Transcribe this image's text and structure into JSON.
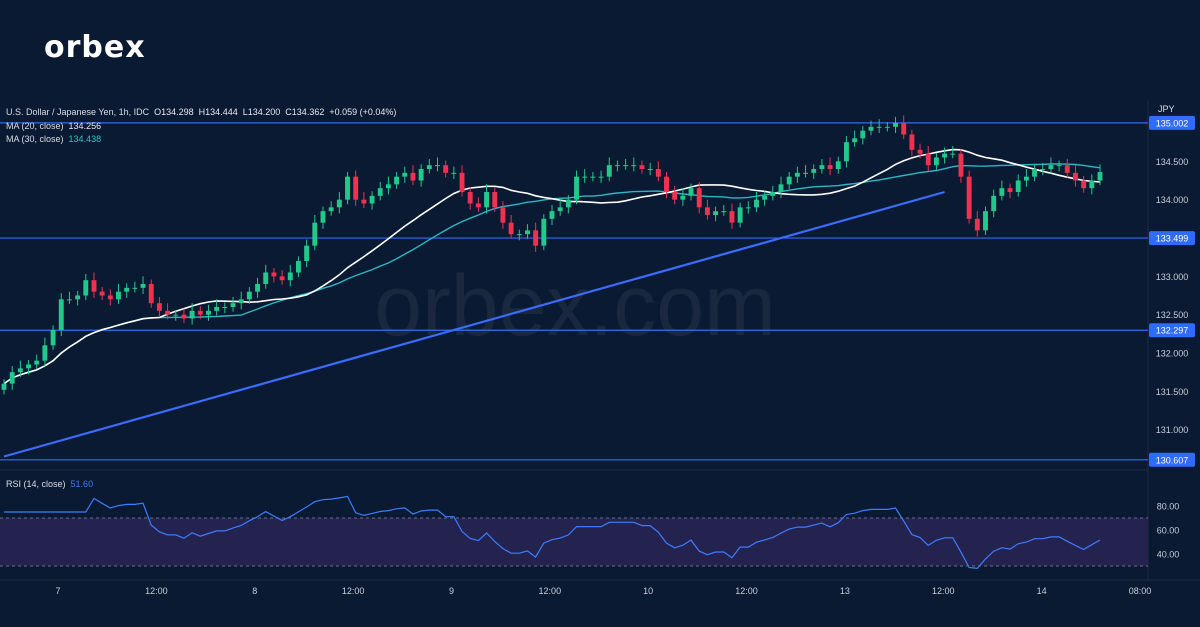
{
  "brand": {
    "logo_text": "orbex",
    "watermark": "orbex.com"
  },
  "header": {
    "instrument": "U.S. Dollar / Japanese Yen, 1h, IDC",
    "ohlc": {
      "open": "O134.298",
      "high": "H134.444",
      "low": "L134.200",
      "close": "C134.362",
      "change": "+0.059 (+0.04%)"
    },
    "ma20_label": "MA (20, close)",
    "ma20_value": "134.256",
    "ma30_label": "MA (30, close)",
    "ma30_value": "134.438",
    "currency": "JPY"
  },
  "rsi_header": {
    "label": "RSI (14, close)",
    "value": "51.60"
  },
  "colors": {
    "background": "#0b1a33",
    "bull": "#22c98a",
    "bear": "#f0314f",
    "ma20": "#ffffff",
    "ma30": "#2ab7c4",
    "levels": "#2f6bff",
    "rsi": "#3b7dff",
    "rsi_band": "#24234f"
  },
  "chart_data": {
    "type": "candlestick",
    "title": "U.S. Dollar / Japanese Yen, 1h",
    "ylim": [
      130.5,
      135.3
    ],
    "y_ticks": [
      "134.500",
      "134.000",
      "133.000",
      "132.500",
      "132.000",
      "131.500",
      "131.000"
    ],
    "x_ticks": [
      "7",
      "12:00",
      "8",
      "12:00",
      "9",
      "12:00",
      "10",
      "12:00",
      "13",
      "12:00",
      "14",
      "08:00"
    ],
    "levels": [
      {
        "value": 135.002,
        "label": "135.002"
      },
      {
        "value": 133.499,
        "label": "133.499"
      },
      {
        "value": 132.297,
        "label": "132.297"
      },
      {
        "value": 130.607,
        "label": "130.607"
      }
    ],
    "trendline": {
      "from": {
        "bar": 0,
        "value": 130.65
      },
      "to": {
        "bar": 115,
        "value": 134.1
      }
    },
    "closes": [
      131.6,
      131.75,
      131.8,
      131.85,
      131.9,
      132.1,
      132.3,
      132.7,
      132.7,
      132.75,
      132.95,
      132.8,
      132.75,
      132.7,
      132.8,
      132.85,
      132.85,
      132.9,
      132.65,
      132.55,
      132.5,
      132.5,
      132.45,
      132.55,
      132.5,
      132.55,
      132.6,
      132.6,
      132.65,
      132.7,
      132.8,
      132.9,
      133.05,
      133.0,
      132.95,
      133.05,
      133.2,
      133.4,
      133.7,
      133.85,
      133.9,
      134.0,
      134.3,
      134.0,
      133.95,
      134.05,
      134.15,
      134.2,
      134.3,
      134.35,
      134.25,
      134.4,
      134.45,
      134.45,
      134.35,
      134.35,
      134.1,
      133.95,
      133.9,
      134.1,
      133.9,
      133.7,
      133.55,
      133.55,
      133.6,
      133.4,
      133.75,
      133.85,
      133.9,
      134.0,
      134.3,
      134.3,
      134.3,
      134.3,
      134.45,
      134.45,
      134.45,
      134.45,
      134.4,
      134.4,
      134.3,
      134.1,
      134.0,
      134.05,
      134.15,
      133.9,
      133.8,
      133.85,
      133.85,
      133.7,
      133.9,
      133.9,
      134.0,
      134.05,
      134.1,
      134.2,
      134.3,
      134.35,
      134.35,
      134.4,
      134.45,
      134.4,
      134.5,
      134.75,
      134.8,
      134.9,
      134.95,
      134.95,
      134.95,
      135.0,
      134.85,
      134.65,
      134.6,
      134.45,
      134.55,
      134.6,
      134.6,
      134.3,
      133.75,
      133.6,
      133.85,
      134.05,
      134.15,
      134.1,
      134.25,
      134.3,
      134.4,
      134.4,
      134.45,
      134.45,
      134.35,
      134.25,
      134.15,
      134.25,
      134.36
    ],
    "rsi": {
      "ylim": [
        20,
        95
      ],
      "y_ticks": [
        "80.00",
        "60.00",
        "40.00"
      ],
      "band": [
        30,
        70
      ]
    }
  }
}
